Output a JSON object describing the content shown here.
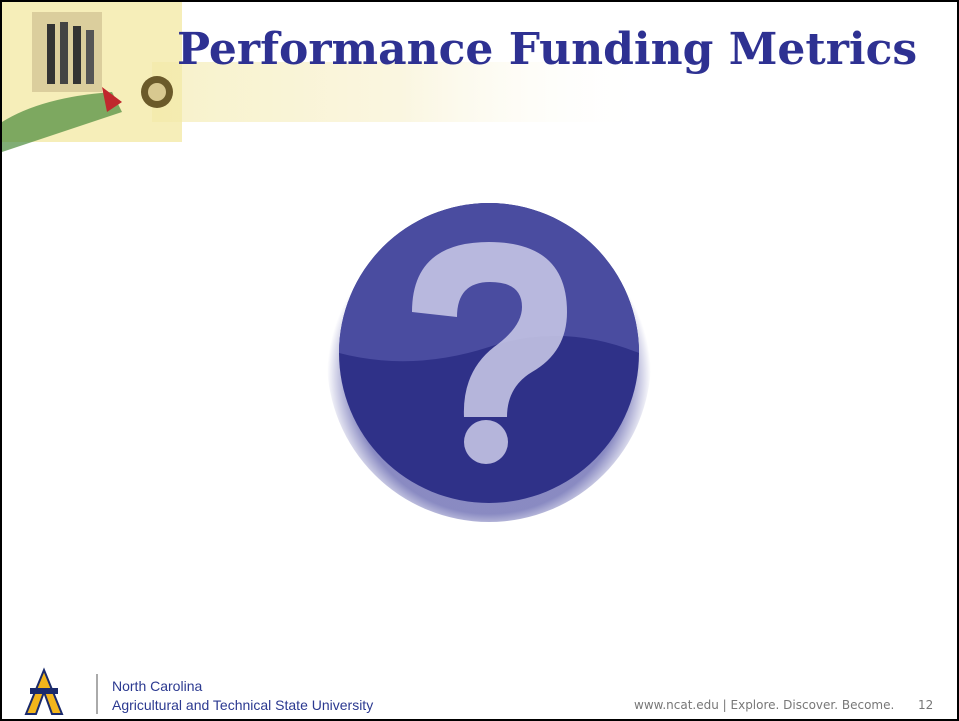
{
  "slide": {
    "title": "Performance Funding Metrics",
    "footer": {
      "line1": "North Carolina",
      "line2": "Agricultural and Technical State University",
      "site": "www.ncat.edu | Explore. Discover. Become.",
      "page": "12"
    }
  }
}
